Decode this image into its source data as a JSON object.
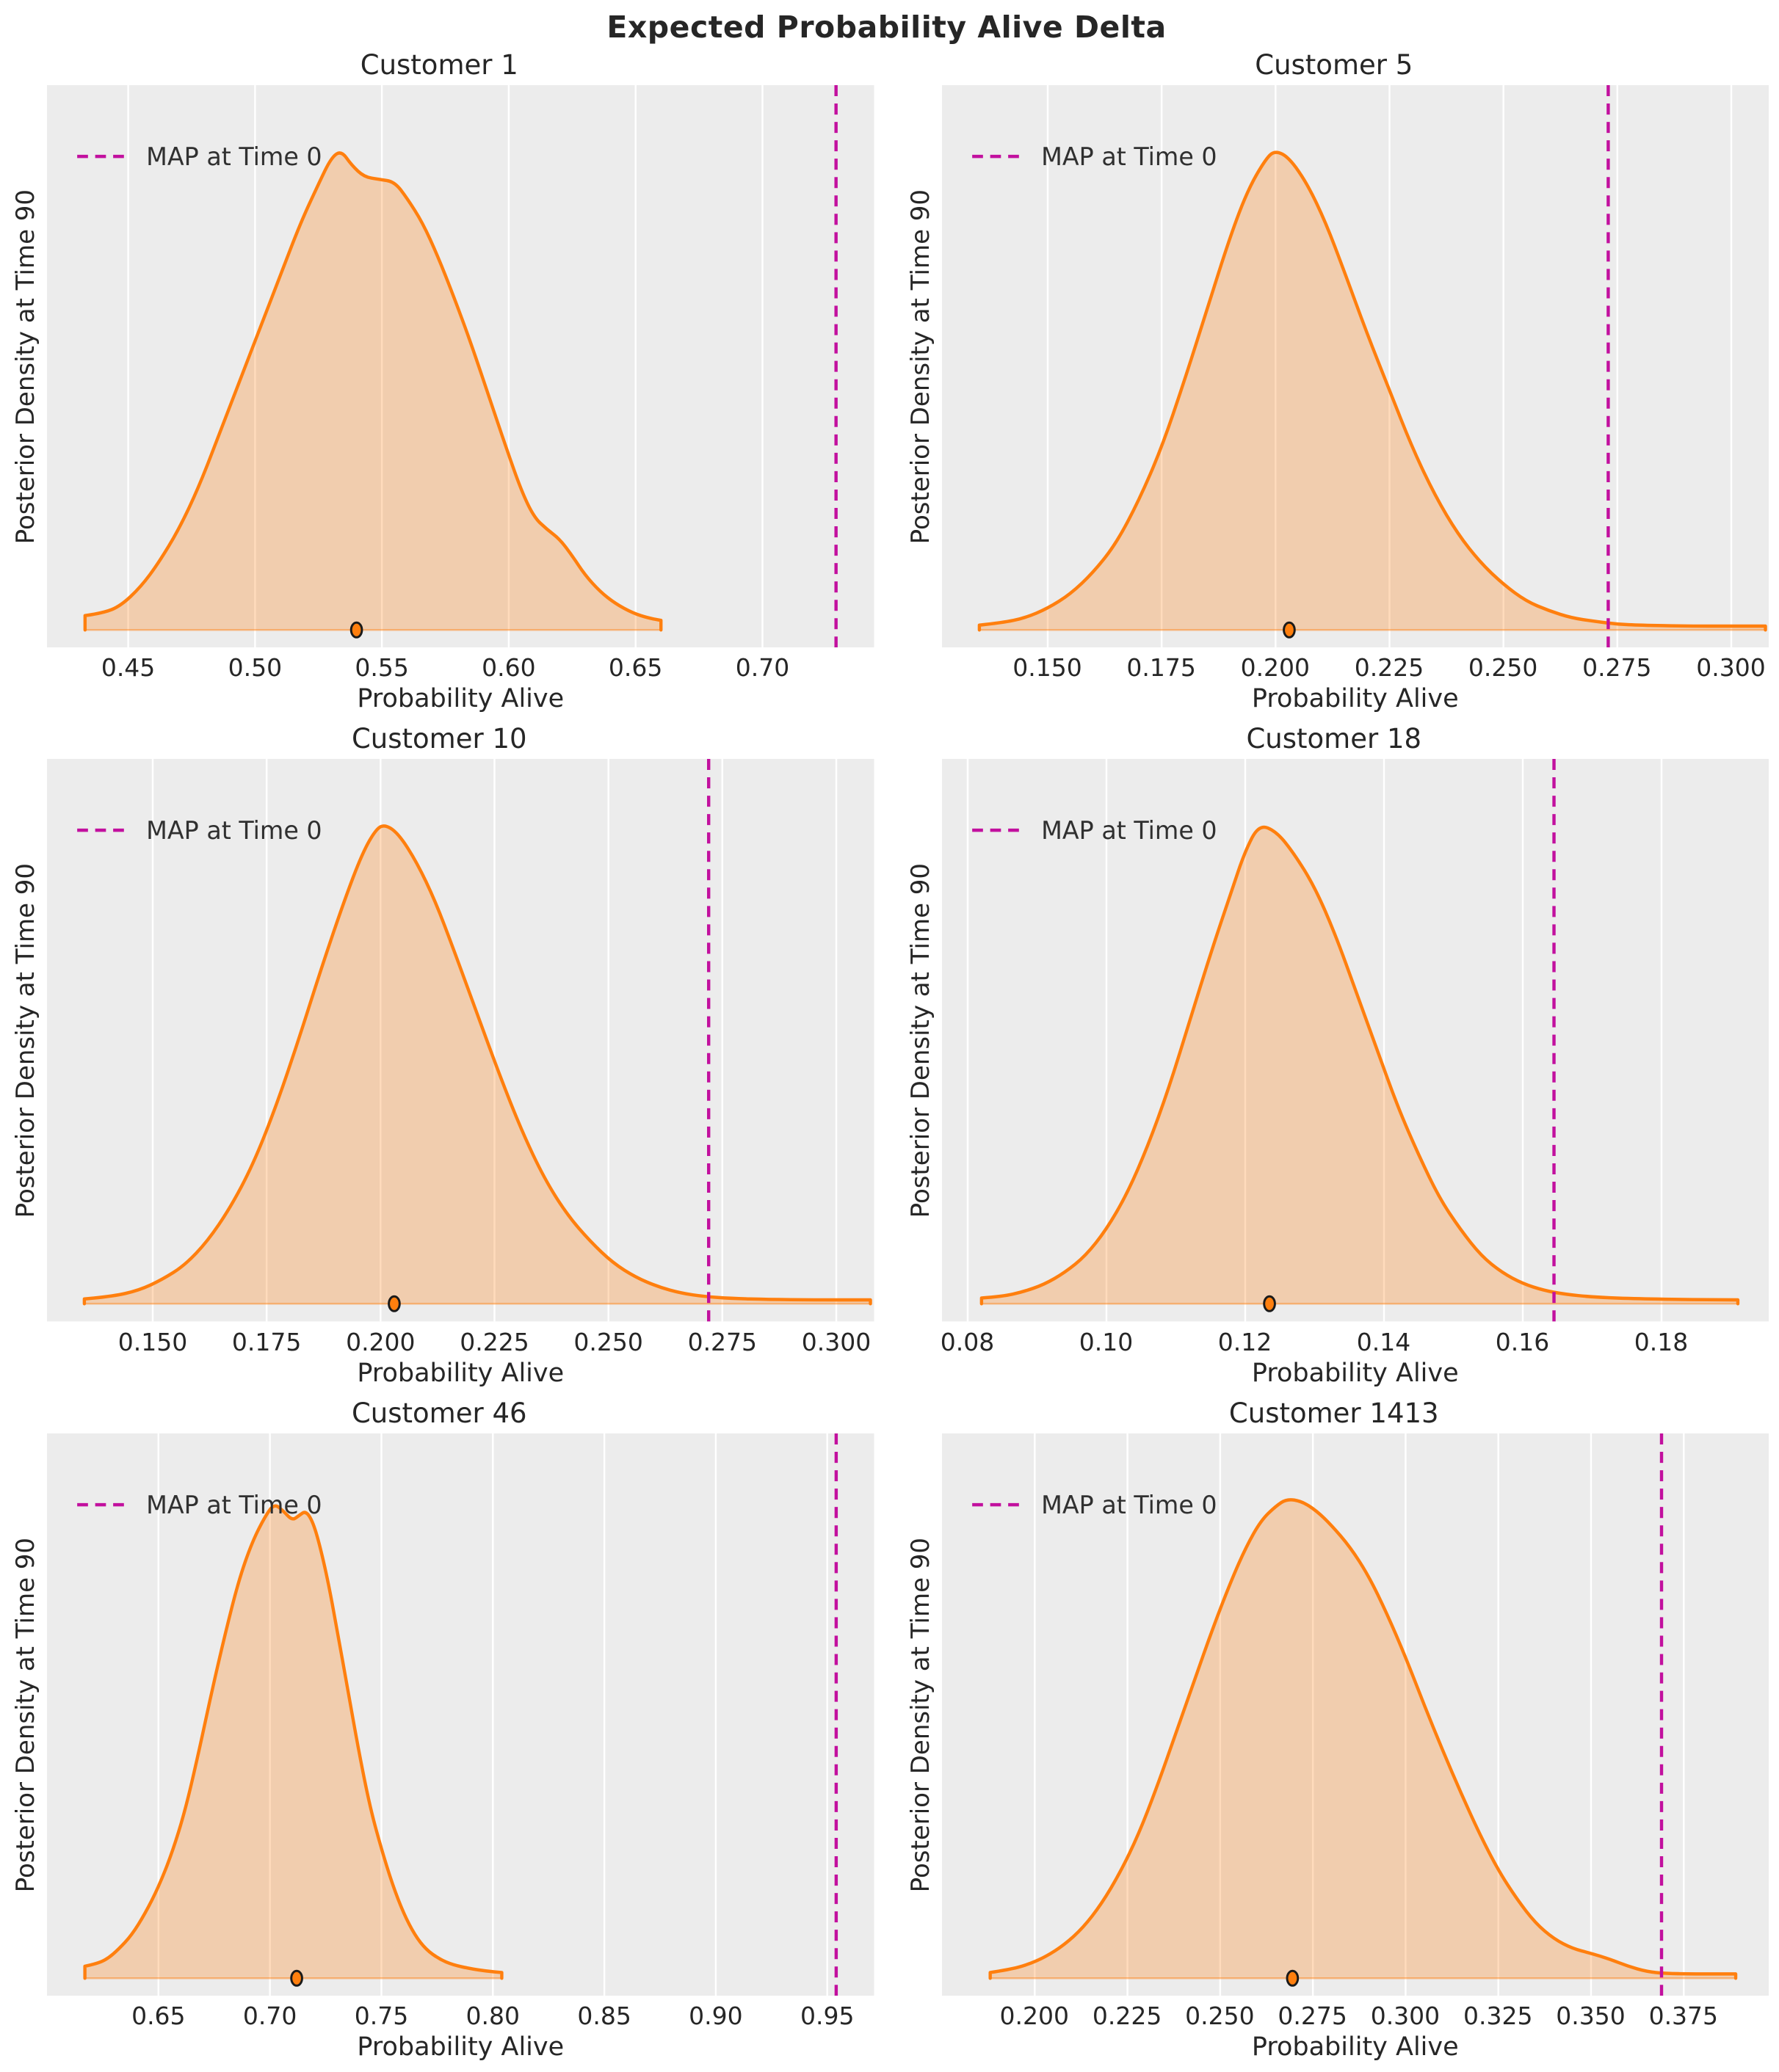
{
  "suptitle": "Expected Probability Alive Delta",
  "legend_label": "MAP at Time 0",
  "colors": {
    "curve": "#FF7F0E",
    "curve_fill": "rgba(255,127,14,0.28)",
    "baseline": "rgba(255,127,14,0.45)",
    "map_line": "#C2109E",
    "plot_bg": "#ECECEC",
    "grid": "#FFFFFF",
    "text": "#262626"
  },
  "chart_data": [
    {
      "type": "area",
      "title": "Customer 1",
      "xlabel": "Probability Alive",
      "ylabel": "Posterior Density at Time 90",
      "xlim": [
        0.418,
        0.744
      ],
      "xticks": [
        0.45,
        0.5,
        0.55,
        0.6,
        0.65,
        0.7
      ],
      "xtick_labels": [
        "0.45",
        "0.50",
        "0.55",
        "0.60",
        "0.65",
        "0.70"
      ],
      "map_at_time0": 0.729,
      "expected_dot": 0.54,
      "kde_points": [
        [
          0.433,
          0.03
        ],
        [
          0.44,
          0.035
        ],
        [
          0.447,
          0.05
        ],
        [
          0.455,
          0.09
        ],
        [
          0.462,
          0.14
        ],
        [
          0.47,
          0.21
        ],
        [
          0.478,
          0.3
        ],
        [
          0.486,
          0.41
        ],
        [
          0.494,
          0.52
        ],
        [
          0.502,
          0.63
        ],
        [
          0.51,
          0.74
        ],
        [
          0.518,
          0.85
        ],
        [
          0.525,
          0.93
        ],
        [
          0.53,
          0.985
        ],
        [
          0.534,
          1.0
        ],
        [
          0.538,
          0.97
        ],
        [
          0.543,
          0.945
        ],
        [
          0.549,
          0.94
        ],
        [
          0.555,
          0.935
        ],
        [
          0.56,
          0.9
        ],
        [
          0.566,
          0.85
        ],
        [
          0.572,
          0.78
        ],
        [
          0.578,
          0.7
        ],
        [
          0.585,
          0.6
        ],
        [
          0.592,
          0.49
        ],
        [
          0.599,
          0.38
        ],
        [
          0.605,
          0.29
        ],
        [
          0.61,
          0.235
        ],
        [
          0.615,
          0.21
        ],
        [
          0.62,
          0.19
        ],
        [
          0.625,
          0.155
        ],
        [
          0.63,
          0.115
        ],
        [
          0.636,
          0.08
        ],
        [
          0.642,
          0.055
        ],
        [
          0.649,
          0.035
        ],
        [
          0.655,
          0.025
        ],
        [
          0.66,
          0.02
        ]
      ]
    },
    {
      "type": "area",
      "title": "Customer 5",
      "xlabel": "Probability Alive",
      "ylabel": "Posterior Density at Time 90",
      "xlim": [
        0.1268,
        0.3083
      ],
      "xticks": [
        0.15,
        0.175,
        0.2,
        0.225,
        0.25,
        0.275,
        0.3
      ],
      "xtick_labels": [
        "0.150",
        "0.175",
        "0.200",
        "0.225",
        "0.250",
        "0.275",
        "0.300"
      ],
      "map_at_time0": 0.273,
      "expected_dot": 0.203,
      "kde_points": [
        [
          0.135,
          0.01
        ],
        [
          0.14,
          0.015
        ],
        [
          0.145,
          0.025
        ],
        [
          0.15,
          0.045
        ],
        [
          0.155,
          0.075
        ],
        [
          0.16,
          0.12
        ],
        [
          0.165,
          0.18
        ],
        [
          0.17,
          0.27
        ],
        [
          0.175,
          0.38
        ],
        [
          0.18,
          0.52
        ],
        [
          0.185,
          0.67
        ],
        [
          0.19,
          0.82
        ],
        [
          0.194,
          0.92
        ],
        [
          0.198,
          0.985
        ],
        [
          0.2,
          1.0
        ],
        [
          0.203,
          0.985
        ],
        [
          0.207,
          0.93
        ],
        [
          0.211,
          0.85
        ],
        [
          0.215,
          0.75
        ],
        [
          0.22,
          0.62
        ],
        [
          0.225,
          0.5
        ],
        [
          0.23,
          0.38
        ],
        [
          0.235,
          0.28
        ],
        [
          0.24,
          0.2
        ],
        [
          0.245,
          0.14
        ],
        [
          0.25,
          0.095
        ],
        [
          0.255,
          0.06
        ],
        [
          0.26,
          0.04
        ],
        [
          0.265,
          0.025
        ],
        [
          0.27,
          0.018
        ],
        [
          0.275,
          0.012
        ],
        [
          0.28,
          0.01
        ],
        [
          0.29,
          0.008
        ],
        [
          0.3,
          0.008
        ],
        [
          0.3075,
          0.008
        ]
      ]
    },
    {
      "type": "area",
      "title": "Customer 10",
      "xlabel": "Probability Alive",
      "ylabel": "Posterior Density at Time 90",
      "xlim": [
        0.1268,
        0.3083
      ],
      "xticks": [
        0.15,
        0.175,
        0.2,
        0.225,
        0.25,
        0.275,
        0.3
      ],
      "xtick_labels": [
        "0.150",
        "0.175",
        "0.200",
        "0.225",
        "0.250",
        "0.275",
        "0.300"
      ],
      "map_at_time0": 0.272,
      "expected_dot": 0.203,
      "kde_points": [
        [
          0.135,
          0.01
        ],
        [
          0.141,
          0.015
        ],
        [
          0.147,
          0.028
        ],
        [
          0.152,
          0.05
        ],
        [
          0.157,
          0.08
        ],
        [
          0.162,
          0.13
        ],
        [
          0.167,
          0.2
        ],
        [
          0.172,
          0.29
        ],
        [
          0.177,
          0.41
        ],
        [
          0.182,
          0.55
        ],
        [
          0.187,
          0.7
        ],
        [
          0.192,
          0.84
        ],
        [
          0.196,
          0.94
        ],
        [
          0.199,
          0.99
        ],
        [
          0.201,
          1.0
        ],
        [
          0.204,
          0.98
        ],
        [
          0.208,
          0.92
        ],
        [
          0.212,
          0.84
        ],
        [
          0.216,
          0.74
        ],
        [
          0.221,
          0.61
        ],
        [
          0.226,
          0.48
        ],
        [
          0.231,
          0.36
        ],
        [
          0.236,
          0.26
        ],
        [
          0.241,
          0.185
        ],
        [
          0.246,
          0.13
        ],
        [
          0.251,
          0.085
        ],
        [
          0.256,
          0.055
        ],
        [
          0.261,
          0.035
        ],
        [
          0.266,
          0.022
        ],
        [
          0.271,
          0.015
        ],
        [
          0.277,
          0.011
        ],
        [
          0.285,
          0.009
        ],
        [
          0.295,
          0.008
        ],
        [
          0.3075,
          0.008
        ]
      ]
    },
    {
      "type": "area",
      "title": "Customer 18",
      "xlabel": "Probability Alive",
      "ylabel": "Posterior Density at Time 90",
      "xlim": [
        0.0763,
        0.1955
      ],
      "xticks": [
        0.08,
        0.1,
        0.12,
        0.14,
        0.16,
        0.18
      ],
      "xtick_labels": [
        "0.08",
        "0.10",
        "0.12",
        "0.14",
        "0.16",
        "0.18"
      ],
      "map_at_time0": 0.1645,
      "expected_dot": 0.1235,
      "kde_points": [
        [
          0.082,
          0.012
        ],
        [
          0.085,
          0.015
        ],
        [
          0.088,
          0.025
        ],
        [
          0.091,
          0.04
        ],
        [
          0.094,
          0.065
        ],
        [
          0.097,
          0.1
        ],
        [
          0.1,
          0.155
        ],
        [
          0.103,
          0.23
        ],
        [
          0.106,
          0.33
        ],
        [
          0.109,
          0.45
        ],
        [
          0.112,
          0.59
        ],
        [
          0.115,
          0.73
        ],
        [
          0.118,
          0.86
        ],
        [
          0.12,
          0.945
        ],
        [
          0.122,
          1.0
        ],
        [
          0.1245,
          0.985
        ],
        [
          0.127,
          0.94
        ],
        [
          0.13,
          0.87
        ],
        [
          0.133,
          0.77
        ],
        [
          0.136,
          0.65
        ],
        [
          0.139,
          0.53
        ],
        [
          0.142,
          0.41
        ],
        [
          0.145,
          0.31
        ],
        [
          0.148,
          0.22
        ],
        [
          0.151,
          0.155
        ],
        [
          0.154,
          0.1
        ],
        [
          0.157,
          0.065
        ],
        [
          0.16,
          0.042
        ],
        [
          0.163,
          0.028
        ],
        [
          0.166,
          0.02
        ],
        [
          0.17,
          0.014
        ],
        [
          0.175,
          0.011
        ],
        [
          0.182,
          0.009
        ],
        [
          0.191,
          0.008
        ]
      ]
    },
    {
      "type": "area",
      "title": "Customer 46",
      "xlabel": "Probability Alive",
      "ylabel": "Posterior Density at Time 90",
      "xlim": [
        0.6,
        0.971
      ],
      "xticks": [
        0.65,
        0.7,
        0.75,
        0.8,
        0.85,
        0.9,
        0.95
      ],
      "xtick_labels": [
        "0.65",
        "0.70",
        "0.75",
        "0.80",
        "0.85",
        "0.90",
        "0.95"
      ],
      "map_at_time0": 0.954,
      "expected_dot": 0.712,
      "kde_points": [
        [
          0.617,
          0.025
        ],
        [
          0.622,
          0.03
        ],
        [
          0.627,
          0.04
        ],
        [
          0.632,
          0.06
        ],
        [
          0.638,
          0.09
        ],
        [
          0.644,
          0.135
        ],
        [
          0.65,
          0.19
        ],
        [
          0.656,
          0.26
        ],
        [
          0.662,
          0.35
        ],
        [
          0.668,
          0.47
        ],
        [
          0.674,
          0.6
        ],
        [
          0.68,
          0.72
        ],
        [
          0.686,
          0.83
        ],
        [
          0.692,
          0.91
        ],
        [
          0.698,
          0.965
        ],
        [
          0.702,
          0.99
        ],
        [
          0.706,
          0.975
        ],
        [
          0.71,
          0.955
        ],
        [
          0.713,
          0.965
        ],
        [
          0.716,
          0.975
        ],
        [
          0.719,
          0.955
        ],
        [
          0.722,
          0.91
        ],
        [
          0.726,
          0.83
        ],
        [
          0.73,
          0.73
        ],
        [
          0.735,
          0.6
        ],
        [
          0.74,
          0.47
        ],
        [
          0.745,
          0.355
        ],
        [
          0.75,
          0.27
        ],
        [
          0.755,
          0.195
        ],
        [
          0.76,
          0.135
        ],
        [
          0.765,
          0.09
        ],
        [
          0.77,
          0.06
        ],
        [
          0.776,
          0.04
        ],
        [
          0.782,
          0.028
        ],
        [
          0.79,
          0.02
        ],
        [
          0.797,
          0.015
        ],
        [
          0.804,
          0.012
        ]
      ]
    },
    {
      "type": "area",
      "title": "Customer 1413",
      "xlabel": "Probability Alive",
      "ylabel": "Posterior Density at Time 90",
      "xlim": [
        0.175,
        0.398
      ],
      "xticks": [
        0.2,
        0.225,
        0.25,
        0.275,
        0.3,
        0.325,
        0.35,
        0.375
      ],
      "xtick_labels": [
        "0.200",
        "0.225",
        "0.250",
        "0.275",
        "0.300",
        "0.325",
        "0.350",
        "0.375"
      ],
      "map_at_time0": 0.369,
      "expected_dot": 0.2695,
      "kde_points": [
        [
          0.188,
          0.012
        ],
        [
          0.193,
          0.018
        ],
        [
          0.198,
          0.028
        ],
        [
          0.203,
          0.045
        ],
        [
          0.208,
          0.07
        ],
        [
          0.213,
          0.105
        ],
        [
          0.218,
          0.155
        ],
        [
          0.223,
          0.22
        ],
        [
          0.228,
          0.3
        ],
        [
          0.233,
          0.4
        ],
        [
          0.238,
          0.51
        ],
        [
          0.243,
          0.62
        ],
        [
          0.248,
          0.73
        ],
        [
          0.253,
          0.83
        ],
        [
          0.257,
          0.9
        ],
        [
          0.261,
          0.955
        ],
        [
          0.265,
          0.985
        ],
        [
          0.268,
          1.0
        ],
        [
          0.272,
          0.995
        ],
        [
          0.276,
          0.975
        ],
        [
          0.28,
          0.945
        ],
        [
          0.285,
          0.9
        ],
        [
          0.29,
          0.84
        ],
        [
          0.295,
          0.76
        ],
        [
          0.3,
          0.67
        ],
        [
          0.305,
          0.57
        ],
        [
          0.31,
          0.475
        ],
        [
          0.315,
          0.385
        ],
        [
          0.32,
          0.3
        ],
        [
          0.325,
          0.225
        ],
        [
          0.33,
          0.165
        ],
        [
          0.335,
          0.115
        ],
        [
          0.34,
          0.082
        ],
        [
          0.345,
          0.062
        ],
        [
          0.35,
          0.052
        ],
        [
          0.355,
          0.04
        ],
        [
          0.36,
          0.025
        ],
        [
          0.365,
          0.014
        ],
        [
          0.37,
          0.01
        ],
        [
          0.378,
          0.009
        ],
        [
          0.389,
          0.009
        ]
      ]
    }
  ]
}
